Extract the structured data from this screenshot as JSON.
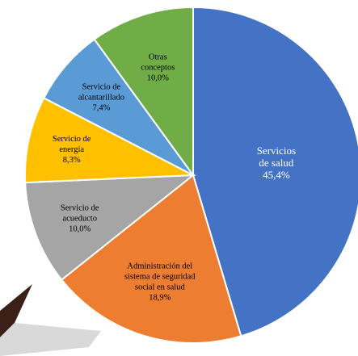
{
  "chart_data": {
    "type": "pie",
    "title": "",
    "slices": [
      {
        "label_lines": [
          "Servicios",
          "de salud"
        ],
        "value": 45.4,
        "value_label": "45,4%",
        "color": "#4472C4",
        "text_color": "#ffffff"
      },
      {
        "label_lines": [
          "Administración del",
          "sistema de seguridad",
          "social en salud"
        ],
        "value": 18.9,
        "value_label": "18,9%",
        "color": "#ED7D31",
        "text_color": "#000000"
      },
      {
        "label_lines": [
          "Servicio de",
          "acueducto"
        ],
        "value": 10.0,
        "value_label": "10,0%",
        "color": "#A5A5A5",
        "text_color": "#000000"
      },
      {
        "label_lines": [
          "Servicio de",
          "energía"
        ],
        "value": 8.3,
        "value_label": "8,3%",
        "color": "#FFC000",
        "text_color": "#000000"
      },
      {
        "label_lines": [
          "Servicio de",
          "alcantarillado"
        ],
        "value": 7.4,
        "value_label": "7,4%",
        "color": "#5B9BD5",
        "text_color": "#000000"
      },
      {
        "label_lines": [
          "Otras",
          "conceptos"
        ],
        "value": 10.0,
        "value_label": "10,0%",
        "color": "#70AD47",
        "text_color": "#000000"
      }
    ],
    "start_angle_deg": 0,
    "direction": "clockwise",
    "legend": "none"
  }
}
